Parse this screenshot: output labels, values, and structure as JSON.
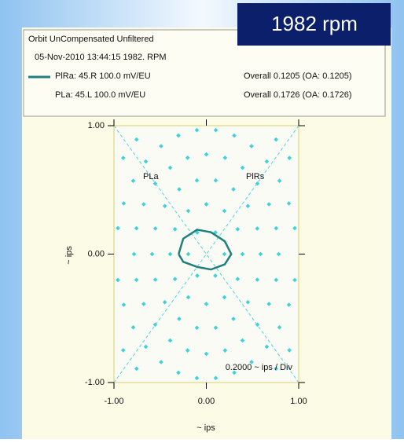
{
  "badge": "1982 rpm",
  "header": {
    "line1": "Orbit  UnCompensated  Unfiltered",
    "line2": "05-Nov-2010 13:44:15   1982. RPM",
    "rows": [
      [
        "PlRa: 45.R   100.0 mV/EU",
        "Overall 0.1205   (OA: 0.1205)"
      ],
      [
        "PLa: 45.L   100.0 mV/EU",
        "Overall 0.1726   (OA: 0.1726)"
      ]
    ]
  },
  "chart_data": {
    "type": "orbit",
    "xlabel": "~ ips",
    "ylabel": "~ ips",
    "probe_labels": [
      "PLa",
      "PlRs"
    ],
    "annotation": "0.2000 ~ ips / Div",
    "xlim": [
      -1,
      1
    ],
    "ylim": [
      -1,
      1
    ],
    "xticks": [
      {
        "value": -1,
        "label": "-1.00"
      },
      {
        "value": 0,
        "label": "0.00"
      },
      {
        "value": 1,
        "label": "1.00"
      }
    ],
    "yticks": [
      {
        "value": -1,
        "label": "-1.00"
      },
      {
        "value": 0,
        "label": "0.00"
      },
      {
        "value": 1,
        "label": "1.00"
      }
    ],
    "series": [
      {
        "name": "PlRa: 45.R   100.0 mV/EU",
        "color": "#1f7f7a",
        "x": [
          -0.3,
          -0.25,
          -0.1,
          0.05,
          0.2,
          0.27,
          0.2,
          0.05,
          -0.1,
          -0.25,
          -0.3
        ],
        "values": [
          0.0,
          0.12,
          0.19,
          0.17,
          0.1,
          0.0,
          -0.08,
          -0.12,
          -0.1,
          -0.06,
          0.0
        ]
      }
    ]
  }
}
